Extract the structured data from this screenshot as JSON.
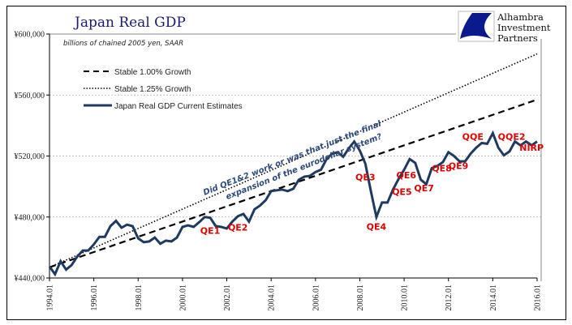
{
  "chart_data": {
    "type": "line",
    "title": "Japan Real GDP",
    "subtitle": "billions of chained 2005 yen, SAAR",
    "xlabel": "",
    "ylabel": "",
    "ylim": [
      440000,
      600000
    ],
    "xlim": [
      1994.0,
      2016.0
    ],
    "yticks": [
      {
        "value": 600000,
        "label": "¥600,000"
      },
      {
        "value": 560000,
        "label": "¥560,000"
      },
      {
        "value": 520000,
        "label": "¥520,000"
      },
      {
        "value": 480000,
        "label": "¥480,000"
      },
      {
        "value": 440000,
        "label": "¥440,000"
      }
    ],
    "xticks": [
      {
        "value": 1994.0,
        "label": "1994.01"
      },
      {
        "value": 1996.0,
        "label": "1996.01"
      },
      {
        "value": 1998.0,
        "label": "1998.01"
      },
      {
        "value": 2000.0,
        "label": "2000.01"
      },
      {
        "value": 2002.0,
        "label": "2002.01"
      },
      {
        "value": 2004.0,
        "label": "2004.01"
      },
      {
        "value": 2006.0,
        "label": "2006.01"
      },
      {
        "value": 2008.0,
        "label": "2008.01"
      },
      {
        "value": 2010.0,
        "label": "2010.01"
      },
      {
        "value": 2012.0,
        "label": "2012.01"
      },
      {
        "value": 2014.0,
        "label": "2014.01"
      },
      {
        "value": 2016.0,
        "label": "2016.01"
      }
    ],
    "grid": "horizontal dotted",
    "legend_position": "top-left",
    "series": [
      {
        "name": "Stable 1.00% Growth",
        "style": "dashed",
        "color": "#000000",
        "x": [
          1994.0,
          2016.0
        ],
        "values": [
          447000,
          557000
        ]
      },
      {
        "name": "Stable 1.25% Growth",
        "style": "dotted",
        "color": "#000000",
        "x": [
          1994.0,
          2016.0
        ],
        "values": [
          447000,
          587000
        ]
      },
      {
        "name": "Japan Real GDP Current Estimates",
        "style": "solid",
        "color": "#1f3a5f",
        "x": [
          1994.0,
          1994.25,
          1994.5,
          1994.75,
          1995.0,
          1995.25,
          1995.5,
          1995.75,
          1996.0,
          1996.25,
          1996.5,
          1996.75,
          1997.0,
          1997.25,
          1997.5,
          1997.75,
          1998.0,
          1998.25,
          1998.5,
          1998.75,
          1999.0,
          1999.25,
          1999.5,
          1999.75,
          2000.0,
          2000.25,
          2000.5,
          2000.75,
          2001.0,
          2001.25,
          2001.5,
          2001.75,
          2002.0,
          2002.25,
          2002.5,
          2002.75,
          2003.0,
          2003.25,
          2003.5,
          2003.75,
          2004.0,
          2004.25,
          2004.5,
          2004.75,
          2005.0,
          2005.25,
          2005.5,
          2005.75,
          2006.0,
          2006.25,
          2006.5,
          2006.75,
          2007.0,
          2007.25,
          2007.5,
          2007.75,
          2008.0,
          2008.25,
          2008.5,
          2008.75,
          2009.0,
          2009.25,
          2009.5,
          2009.75,
          2010.0,
          2010.25,
          2010.5,
          2010.75,
          2011.0,
          2011.25,
          2011.5,
          2011.75,
          2012.0,
          2012.25,
          2012.5,
          2012.75,
          2013.0,
          2013.25,
          2013.5,
          2013.75,
          2014.0,
          2014.25,
          2014.5,
          2014.75,
          2015.0,
          2015.25,
          2015.5,
          2015.75,
          2016.0
        ],
        "values": [
          447500,
          442500,
          451000,
          445500,
          448500,
          454000,
          458000,
          458000,
          462000,
          467000,
          467000,
          474000,
          477500,
          473000,
          475000,
          474000,
          466000,
          463500,
          464000,
          466500,
          462500,
          464500,
          464000,
          466500,
          473500,
          474500,
          473500,
          476500,
          480000,
          479500,
          474000,
          473500,
          472500,
          477000,
          480500,
          482000,
          477000,
          485000,
          487500,
          491000,
          497000,
          497500,
          498000,
          497000,
          498500,
          504500,
          506500,
          507000,
          509500,
          511000,
          518000,
          521500,
          522500,
          519500,
          525000,
          529500,
          523500,
          515000,
          497000,
          480000,
          489500,
          489500,
          498000,
          505000,
          511000,
          518000,
          515500,
          504500,
          501500,
          512000,
          513500,
          516000,
          522500,
          520000,
          516500,
          516500,
          521500,
          525500,
          528500,
          528000,
          535000,
          525500,
          520500,
          523000,
          529500,
          527000,
          529500,
          527000,
          529500
        ]
      }
    ],
    "annotations": [
      {
        "label": "QE1",
        "x": 2001.25,
        "y": 469000
      },
      {
        "label": "QE2",
        "x": 2002.5,
        "y": 471000
      },
      {
        "label": "QE3",
        "x": 2008.25,
        "y": 504000
      },
      {
        "label": "QE4",
        "x": 2008.75,
        "y": 471500
      },
      {
        "label": "QE5",
        "x": 2009.9,
        "y": 494500
      },
      {
        "label": "QE6",
        "x": 2010.1,
        "y": 505500
      },
      {
        "label": "QE7",
        "x": 2010.9,
        "y": 497000
      },
      {
        "label": "QE8",
        "x": 2011.7,
        "y": 510000
      },
      {
        "label": "QE9",
        "x": 2012.45,
        "y": 511500
      },
      {
        "label": "QQE",
        "x": 2013.1,
        "y": 530500
      },
      {
        "label": "QQE2",
        "x": 2014.85,
        "y": 530500
      },
      {
        "label": "NIRP",
        "x": 2015.75,
        "y": 523500
      }
    ]
  },
  "header": {
    "title": "Japan Real GDP",
    "subtitle": "billions of chained 2005 yen, SAAR"
  },
  "logo": {
    "line1": "Alhambra",
    "line2": "Investment",
    "line3": "Partners",
    "color": "#0a1a8c"
  },
  "legend": {
    "items": [
      {
        "label": "Stable 1.00% Growth",
        "style": "dashed"
      },
      {
        "label": "Stable 1.25% Growth",
        "style": "dotted"
      },
      {
        "label": "Japan Real GDP Current Estimates",
        "style": "solid"
      }
    ]
  },
  "note": {
    "line1": "Did QE1&2 work or was that just the final",
    "line2": "expansion of the eurodollar system?"
  },
  "colors": {
    "gdp_line": "#1f3a5f",
    "annotation": "#e00000",
    "note": "#2e4a7a",
    "title": "#1a1a6e"
  }
}
